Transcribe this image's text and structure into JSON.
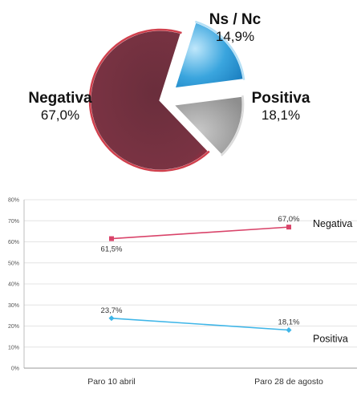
{
  "chart_data": [
    {
      "type": "pie",
      "title": "",
      "slices": [
        {
          "label": "Negativa",
          "value": 67.0,
          "value_label": "67,0%",
          "color": "#6e2e3d",
          "rim": "#c81e2e"
        },
        {
          "label": "Ns / Nc",
          "value": 14.9,
          "value_label": "14,9%",
          "color": "#9a9a9a",
          "rim": "#d6d6d6"
        },
        {
          "label": "Positiva",
          "value": 18.1,
          "value_label": "18,1%",
          "color": "#2f9ad6",
          "rim": "#a8dbf5"
        }
      ],
      "exploded": "Ns / Nc and Positiva"
    },
    {
      "type": "line",
      "title": "",
      "categories": [
        "Paro 10 abril",
        "Paro 28 de agosto"
      ],
      "ylim": [
        0,
        80
      ],
      "yticks": [
        "0%",
        "10%",
        "20%",
        "30%",
        "40%",
        "50%",
        "60%",
        "70%",
        "80%"
      ],
      "grid": "horizontal",
      "series": [
        {
          "name": "Negativa",
          "values": [
            61.5,
            67.0
          ],
          "value_labels": [
            "61,5%",
            "67,0%"
          ],
          "color": "#d9446a",
          "marker": "square"
        },
        {
          "name": "Positiva",
          "values": [
            23.7,
            18.1
          ],
          "value_labels": [
            "23,7%",
            "18,1%"
          ],
          "color": "#3fb6e8",
          "marker": "diamond"
        }
      ]
    }
  ]
}
